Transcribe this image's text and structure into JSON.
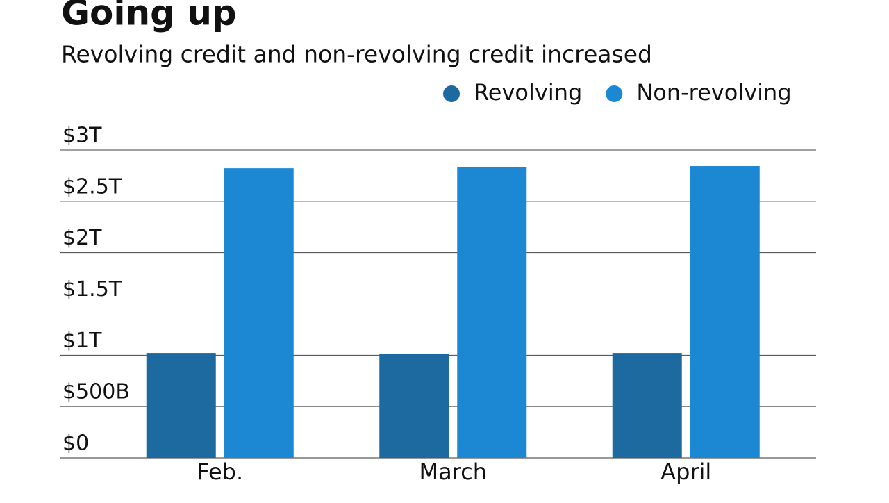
{
  "chart_data": {
    "type": "bar",
    "title": "Going up",
    "subtitle": "Revolving credit and non-revolving credit increased",
    "categories": [
      "Feb.",
      "March",
      "April"
    ],
    "series": [
      {
        "name": "Revolving",
        "color": "#1c6aa0",
        "values": [
          1022000000000,
          1016000000000,
          1022000000000
        ]
      },
      {
        "name": "Non-revolving",
        "color": "#1c87d2",
        "values": [
          2823000000000,
          2837000000000,
          2844000000000
        ]
      }
    ],
    "ylim": [
      0,
      3000000000000
    ],
    "yticks": [
      {
        "value": 0,
        "label": "$0"
      },
      {
        "value": 500000000000,
        "label": "$500B"
      },
      {
        "value": 1000000000000,
        "label": "$1T"
      },
      {
        "value": 1500000000000,
        "label": "$1.5T"
      },
      {
        "value": 2000000000000,
        "label": "$2T"
      },
      {
        "value": 2500000000000,
        "label": "$2.5T"
      },
      {
        "value": 3000000000000,
        "label": "$3T"
      }
    ],
    "grid": true
  }
}
